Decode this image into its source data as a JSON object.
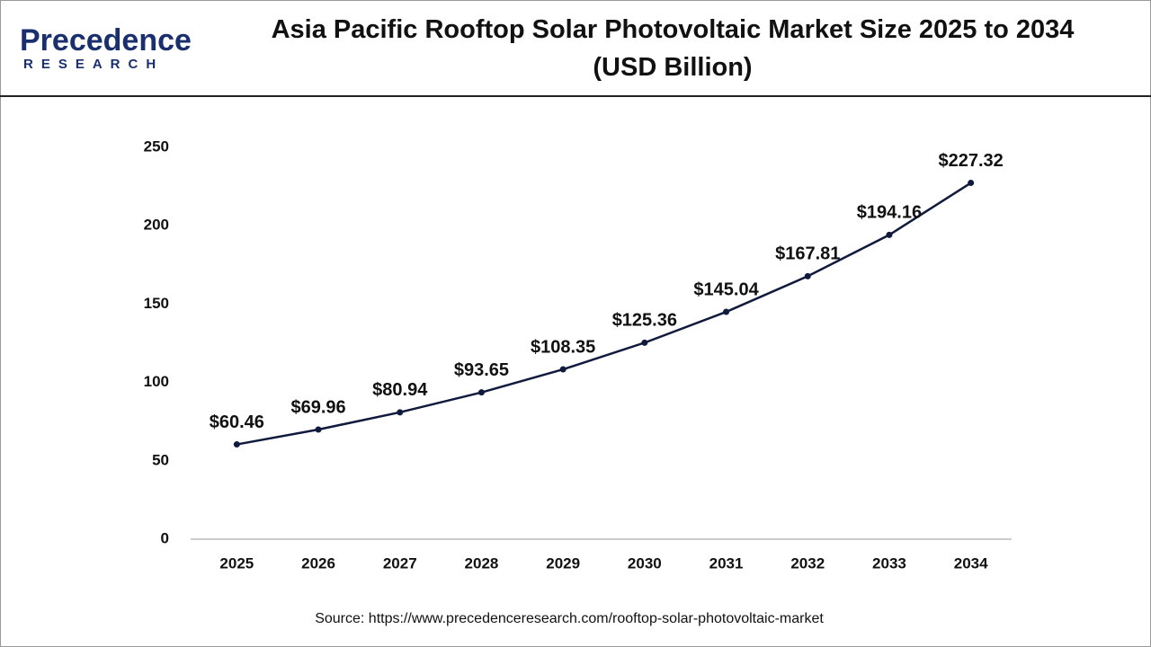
{
  "logo": {
    "name": "Precedence",
    "tagline": "RESEARCH"
  },
  "chart_data": {
    "type": "line",
    "title": "Asia Pacific Rooftop Solar Photovoltaic Market Size 2025 to 2034 (USD Billion)",
    "source": "Source: https://www.precedenceresearch.com/rooftop-solar-photovoltaic-market",
    "categories": [
      "2025",
      "2026",
      "2027",
      "2028",
      "2029",
      "2030",
      "2031",
      "2032",
      "2033",
      "2034"
    ],
    "values": [
      60.46,
      69.96,
      80.94,
      93.65,
      108.35,
      125.36,
      145.04,
      167.81,
      194.16,
      227.32
    ],
    "value_labels": [
      "$60.46",
      "$69.96",
      "$80.94",
      "$93.65",
      "$108.35",
      "$125.36",
      "$145.04",
      "$167.81",
      "$194.16",
      "$227.32"
    ],
    "color": "#0f1a3d",
    "ylim": [
      0,
      250
    ],
    "yticks": [
      0,
      50,
      100,
      150,
      200,
      250
    ],
    "grid": false
  }
}
